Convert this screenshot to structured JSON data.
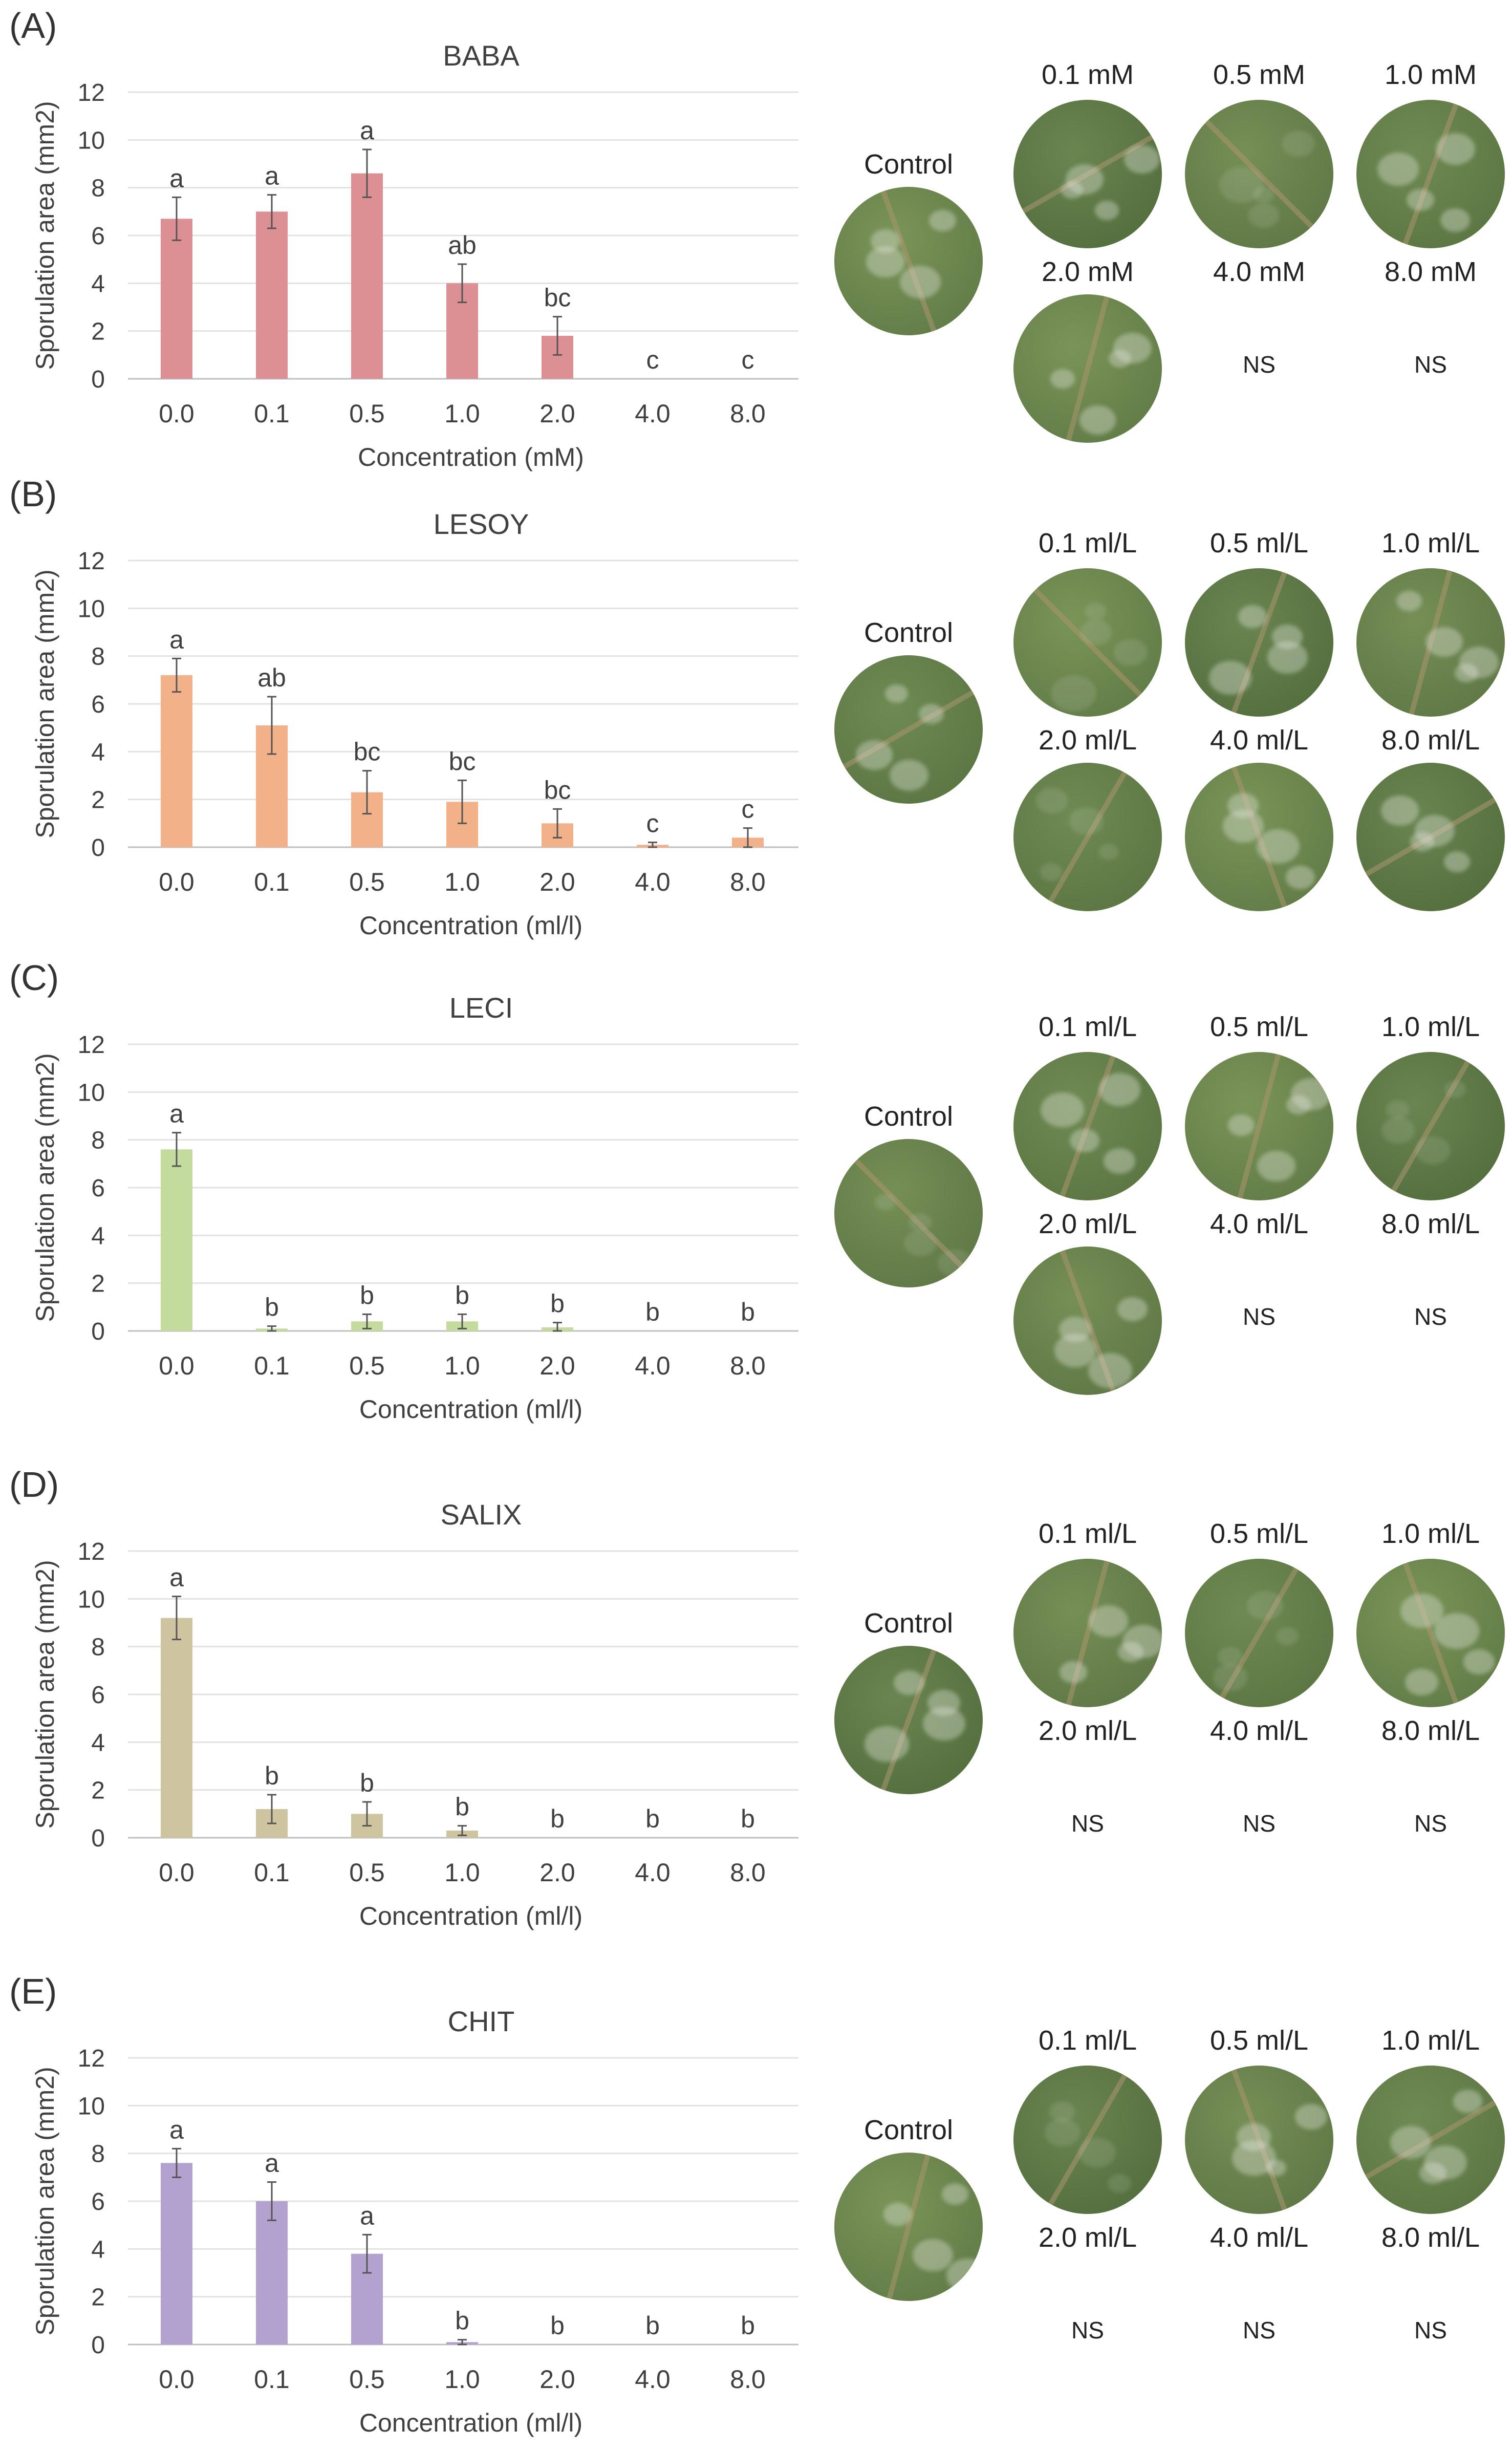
{
  "panels": [
    {
      "id": "A",
      "label": "(A)",
      "img_unit": "mM",
      "chart": {
        "type": "bar",
        "title": "BABA",
        "xlabel": "Concentration (mM)",
        "ylabel": "Sporulation area (mm2)",
        "ylim": [
          0,
          12
        ],
        "yticks": [
          "0",
          "2",
          "4",
          "6",
          "8",
          "10",
          "12"
        ],
        "categories": [
          "0.0",
          "0.1",
          "0.5",
          "1.0",
          "2.0",
          "4.0",
          "8.0"
        ],
        "values": [
          6.7,
          7.0,
          8.6,
          4.0,
          1.8,
          0,
          0
        ],
        "errors": [
          0.9,
          0.7,
          1.0,
          0.8,
          0.8,
          0,
          0
        ],
        "letters": [
          "a",
          "a",
          "a",
          "ab",
          "bc",
          "c",
          "c"
        ],
        "color": "#dc9093"
      },
      "images": {
        "control": "Control",
        "labels": [
          "0.1 mM",
          "0.5 mM",
          "1.0 mM",
          "2.0 mM",
          "4.0 mM",
          "8.0 mM"
        ],
        "ns": [
          "",
          "",
          "",
          "",
          "NS",
          "NS"
        ]
      }
    },
    {
      "id": "B",
      "label": "(B)",
      "chart": {
        "type": "bar",
        "title": "LESOY",
        "xlabel": "Concentration (ml/l)",
        "ylabel": "Sporulation area (mm2)",
        "ylim": [
          0,
          12
        ],
        "yticks": [
          "0",
          "2",
          "4",
          "6",
          "8",
          "10",
          "12"
        ],
        "categories": [
          "0.0",
          "0.1",
          "0.5",
          "1.0",
          "2.0",
          "4.0",
          "8.0"
        ],
        "values": [
          7.2,
          5.1,
          2.3,
          1.9,
          1.0,
          0.1,
          0.4
        ],
        "errors": [
          0.7,
          1.2,
          0.9,
          0.9,
          0.6,
          0.1,
          0.4
        ],
        "letters": [
          "a",
          "ab",
          "bc",
          "bc",
          "bc",
          "c",
          "c"
        ],
        "color": "#f3b189"
      },
      "images": {
        "control": "Control",
        "labels": [
          "0.1 ml/L",
          "0.5 ml/L",
          "1.0 ml/L",
          "2.0 ml/L",
          "4.0 ml/L",
          "8.0 ml/L"
        ],
        "ns": [
          "",
          "",
          "",
          "",
          "",
          ""
        ]
      }
    },
    {
      "id": "C",
      "label": "(C)",
      "chart": {
        "type": "bar",
        "title": "LECI",
        "xlabel": "Concentration (ml/l)",
        "ylabel": "Sporulation area (mm2)",
        "ylim": [
          0,
          12
        ],
        "yticks": [
          "0",
          "2",
          "4",
          "6",
          "8",
          "10",
          "12"
        ],
        "categories": [
          "0.0",
          "0.1",
          "0.5",
          "1.0",
          "2.0",
          "4.0",
          "8.0"
        ],
        "values": [
          7.6,
          0.1,
          0.4,
          0.4,
          0.15,
          0,
          0
        ],
        "errors": [
          0.7,
          0.1,
          0.3,
          0.3,
          0.2,
          0,
          0
        ],
        "letters": [
          "a",
          "b",
          "b",
          "b",
          "b",
          "b",
          "b"
        ],
        "color": "#c3dc9e"
      },
      "images": {
        "control": "Control",
        "labels": [
          "0.1 ml/L",
          "0.5 ml/L",
          "1.0 ml/L",
          "2.0 ml/L",
          "4.0 ml/L",
          "8.0 ml/L"
        ],
        "ns": [
          "",
          "",
          "",
          "",
          "NS",
          "NS"
        ]
      }
    },
    {
      "id": "D",
      "label": "(D)",
      "chart": {
        "type": "bar",
        "title": "SALIX",
        "xlabel": "Concentration (ml/l)",
        "ylabel": "Sporulation area (mm2)",
        "ylim": [
          0,
          12
        ],
        "yticks": [
          "0",
          "2",
          "4",
          "6",
          "8",
          "10",
          "12"
        ],
        "categories": [
          "0.0",
          "0.1",
          "0.5",
          "1.0",
          "2.0",
          "4.0",
          "8.0"
        ],
        "values": [
          9.2,
          1.2,
          1.0,
          0.3,
          0,
          0,
          0
        ],
        "errors": [
          0.9,
          0.6,
          0.5,
          0.2,
          0,
          0,
          0
        ],
        "letters": [
          "a",
          "b",
          "b",
          "b",
          "b",
          "b",
          "b"
        ],
        "color": "#cfc4a0"
      },
      "images": {
        "control": "Control",
        "labels": [
          "0.1 ml/L",
          "0.5 ml/L",
          "1.0 ml/L",
          "2.0 ml/L",
          "4.0 ml/L",
          "8.0 ml/L"
        ],
        "ns": [
          "",
          "",
          "",
          "NS",
          "NS",
          "NS"
        ]
      }
    },
    {
      "id": "E",
      "label": "(E)",
      "chart": {
        "type": "bar",
        "title": "CHIT",
        "xlabel": "Concentration (ml/l)",
        "ylabel": "Sporulation area (mm2)",
        "ylim": [
          0,
          12
        ],
        "yticks": [
          "0",
          "2",
          "4",
          "6",
          "8",
          "10",
          "12"
        ],
        "categories": [
          "0.0",
          "0.1",
          "0.5",
          "1.0",
          "2.0",
          "4.0",
          "8.0"
        ],
        "values": [
          7.6,
          6.0,
          3.8,
          0.1,
          0,
          0,
          0
        ],
        "errors": [
          0.6,
          0.8,
          0.8,
          0.1,
          0,
          0,
          0
        ],
        "letters": [
          "a",
          "a",
          "a",
          "b",
          "b",
          "b",
          "b"
        ],
        "color": "#b3a2cf"
      },
      "images": {
        "control": "Control",
        "labels": [
          "0.1 ml/L",
          "0.5 ml/L",
          "1.0 ml/L",
          "2.0 ml/L",
          "4.0 ml/L",
          "8.0 ml/L"
        ],
        "ns": [
          "",
          "",
          "",
          "NS",
          "NS",
          "NS"
        ]
      }
    }
  ]
}
